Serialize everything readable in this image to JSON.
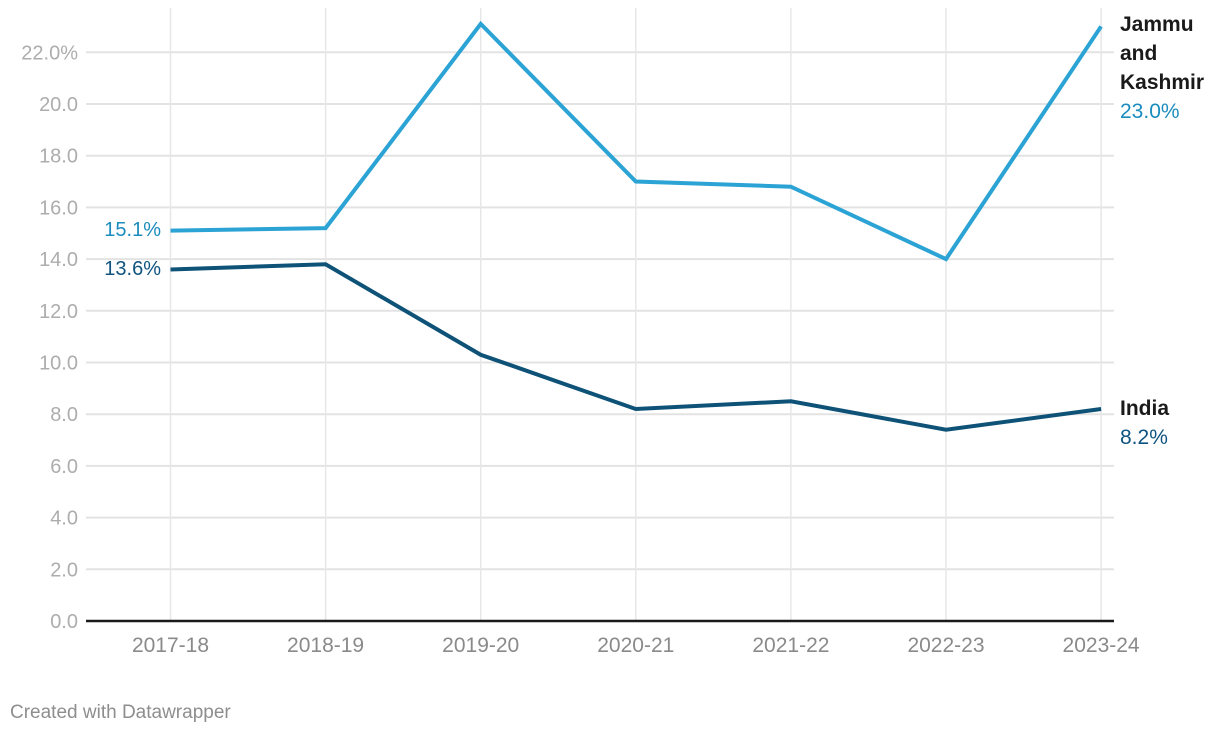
{
  "footer": {
    "credit": "Created with Datawrapper"
  },
  "colors": {
    "grid_horizontal": "#e3e3e3",
    "grid_vertical": "#e7e7e7",
    "baseline": "#1a1a1a",
    "y_tick_text": "#adadad",
    "x_tick_text": "#8a8a8a",
    "series_name_text": "#1a1a1a"
  },
  "chart_data": {
    "type": "line",
    "title": "",
    "xlabel": "",
    "ylabel": "",
    "grid": true,
    "legend_position": "inline-right",
    "categories": [
      "2017-18",
      "2018-19",
      "2019-20",
      "2020-21",
      "2021-22",
      "2022-23",
      "2023-24"
    ],
    "series": [
      {
        "name": "Jammu and Kashmir",
        "values": [
          15.1,
          15.2,
          23.1,
          17.0,
          16.8,
          14.0,
          23.0
        ],
        "color": "#2ba3d4",
        "label_color": "#1b8cbd",
        "start_label": "15.1%",
        "end_label": "23.0%"
      },
      {
        "name": "India",
        "values": [
          13.6,
          13.8,
          10.3,
          8.2,
          8.5,
          7.4,
          8.2
        ],
        "color": "#0e5278",
        "label_color": "#0f5480",
        "start_label": "13.6%",
        "end_label": "8.2%"
      }
    ],
    "y_axis": {
      "range": [
        0,
        23.5
      ],
      "tick_values": [
        22,
        20,
        18,
        16,
        14,
        12,
        10,
        8,
        6,
        4,
        2,
        0
      ],
      "tick_labels": [
        "22.0%",
        "20.0",
        "18.0",
        "16.0",
        "14.0",
        "12.0",
        "10.0",
        "8.0",
        "6.0",
        "4.0",
        "2.0",
        "0.0"
      ]
    }
  }
}
